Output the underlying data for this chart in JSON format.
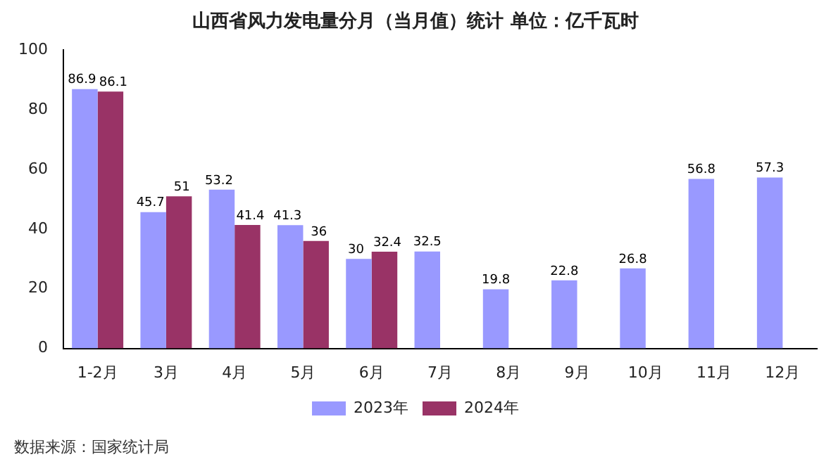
{
  "chart_data": {
    "type": "bar",
    "title": "山西省风力发电量分月（当月值）统计 单位：亿千瓦时",
    "categories": [
      "1-2月",
      "3月",
      "4月",
      "5月",
      "6月",
      "7月",
      "8月",
      "9月",
      "10月",
      "11月",
      "12月"
    ],
    "series": [
      {
        "name": "2023年",
        "color": "#9999ff",
        "values": [
          86.9,
          45.7,
          53.2,
          41.3,
          30,
          32.5,
          19.8,
          22.8,
          26.8,
          56.8,
          57.3
        ]
      },
      {
        "name": "2024年",
        "color": "#993366",
        "values": [
          86.1,
          51,
          41.4,
          36,
          32.4,
          null,
          null,
          null,
          null,
          null,
          null
        ]
      }
    ],
    "ylim": [
      0,
      100
    ],
    "yticks": [
      0,
      20,
      40,
      60,
      80,
      100
    ],
    "grid": false,
    "legend": "bottom",
    "data_labels": true,
    "annotations": [
      "数据来源：国家统计局"
    ]
  }
}
